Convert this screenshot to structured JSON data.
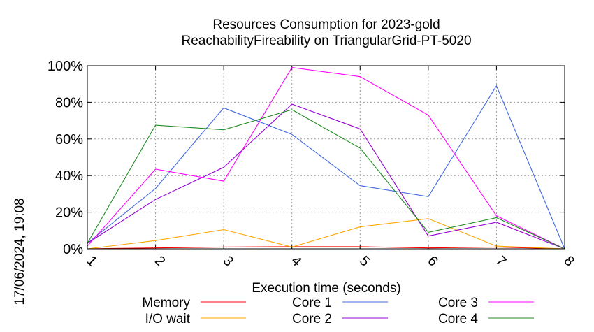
{
  "chart_data": {
    "type": "line",
    "title": [
      "Resources Consumption for 2023-gold",
      "ReachabilityFireability on TriangularGrid-PT-5020"
    ],
    "xlabel": "Execution time (seconds)",
    "ylabel": "",
    "side_label": "17/06/2024, 19:08",
    "x": [
      1,
      2,
      3,
      4,
      5,
      6,
      7,
      8
    ],
    "xlim": [
      1,
      8
    ],
    "ylim": [
      0,
      100
    ],
    "y_ticks": [
      {
        "value": 0,
        "label": "0%"
      },
      {
        "value": 20,
        "label": "20%"
      },
      {
        "value": 40,
        "label": "40%"
      },
      {
        "value": 60,
        "label": "60%"
      },
      {
        "value": 80,
        "label": "80%"
      },
      {
        "value": 100,
        "label": "100%"
      }
    ],
    "x_ticks": [
      "1",
      "2",
      "3",
      "4",
      "5",
      "6",
      "7",
      "8"
    ],
    "grid": true,
    "legend_position": "bottom",
    "series": [
      {
        "name": "Memory",
        "color": "#ff0000",
        "values": [
          0,
          0.5,
          1,
          1.2,
          1.2,
          0.5,
          1,
          0
        ]
      },
      {
        "name": "I/O wait",
        "color": "#ffa500",
        "values": [
          0,
          4.5,
          10.5,
          1,
          12,
          16.5,
          1.5,
          0
        ]
      },
      {
        "name": "Core 1",
        "color": "#4169e1",
        "values": [
          3,
          33,
          77,
          62.5,
          34.5,
          28.5,
          89,
          0
        ]
      },
      {
        "name": "Core 2",
        "color": "#9400d3",
        "values": [
          3,
          27,
          44.5,
          79,
          65.5,
          7,
          14.5,
          0
        ]
      },
      {
        "name": "Core 3",
        "color": "#ff00ff",
        "values": [
          1.5,
          43.5,
          37,
          99,
          94,
          73,
          18,
          0
        ]
      },
      {
        "name": "Core 4",
        "color": "#228b22",
        "values": [
          3,
          67.5,
          65,
          76,
          55,
          9,
          17,
          0
        ]
      }
    ]
  }
}
